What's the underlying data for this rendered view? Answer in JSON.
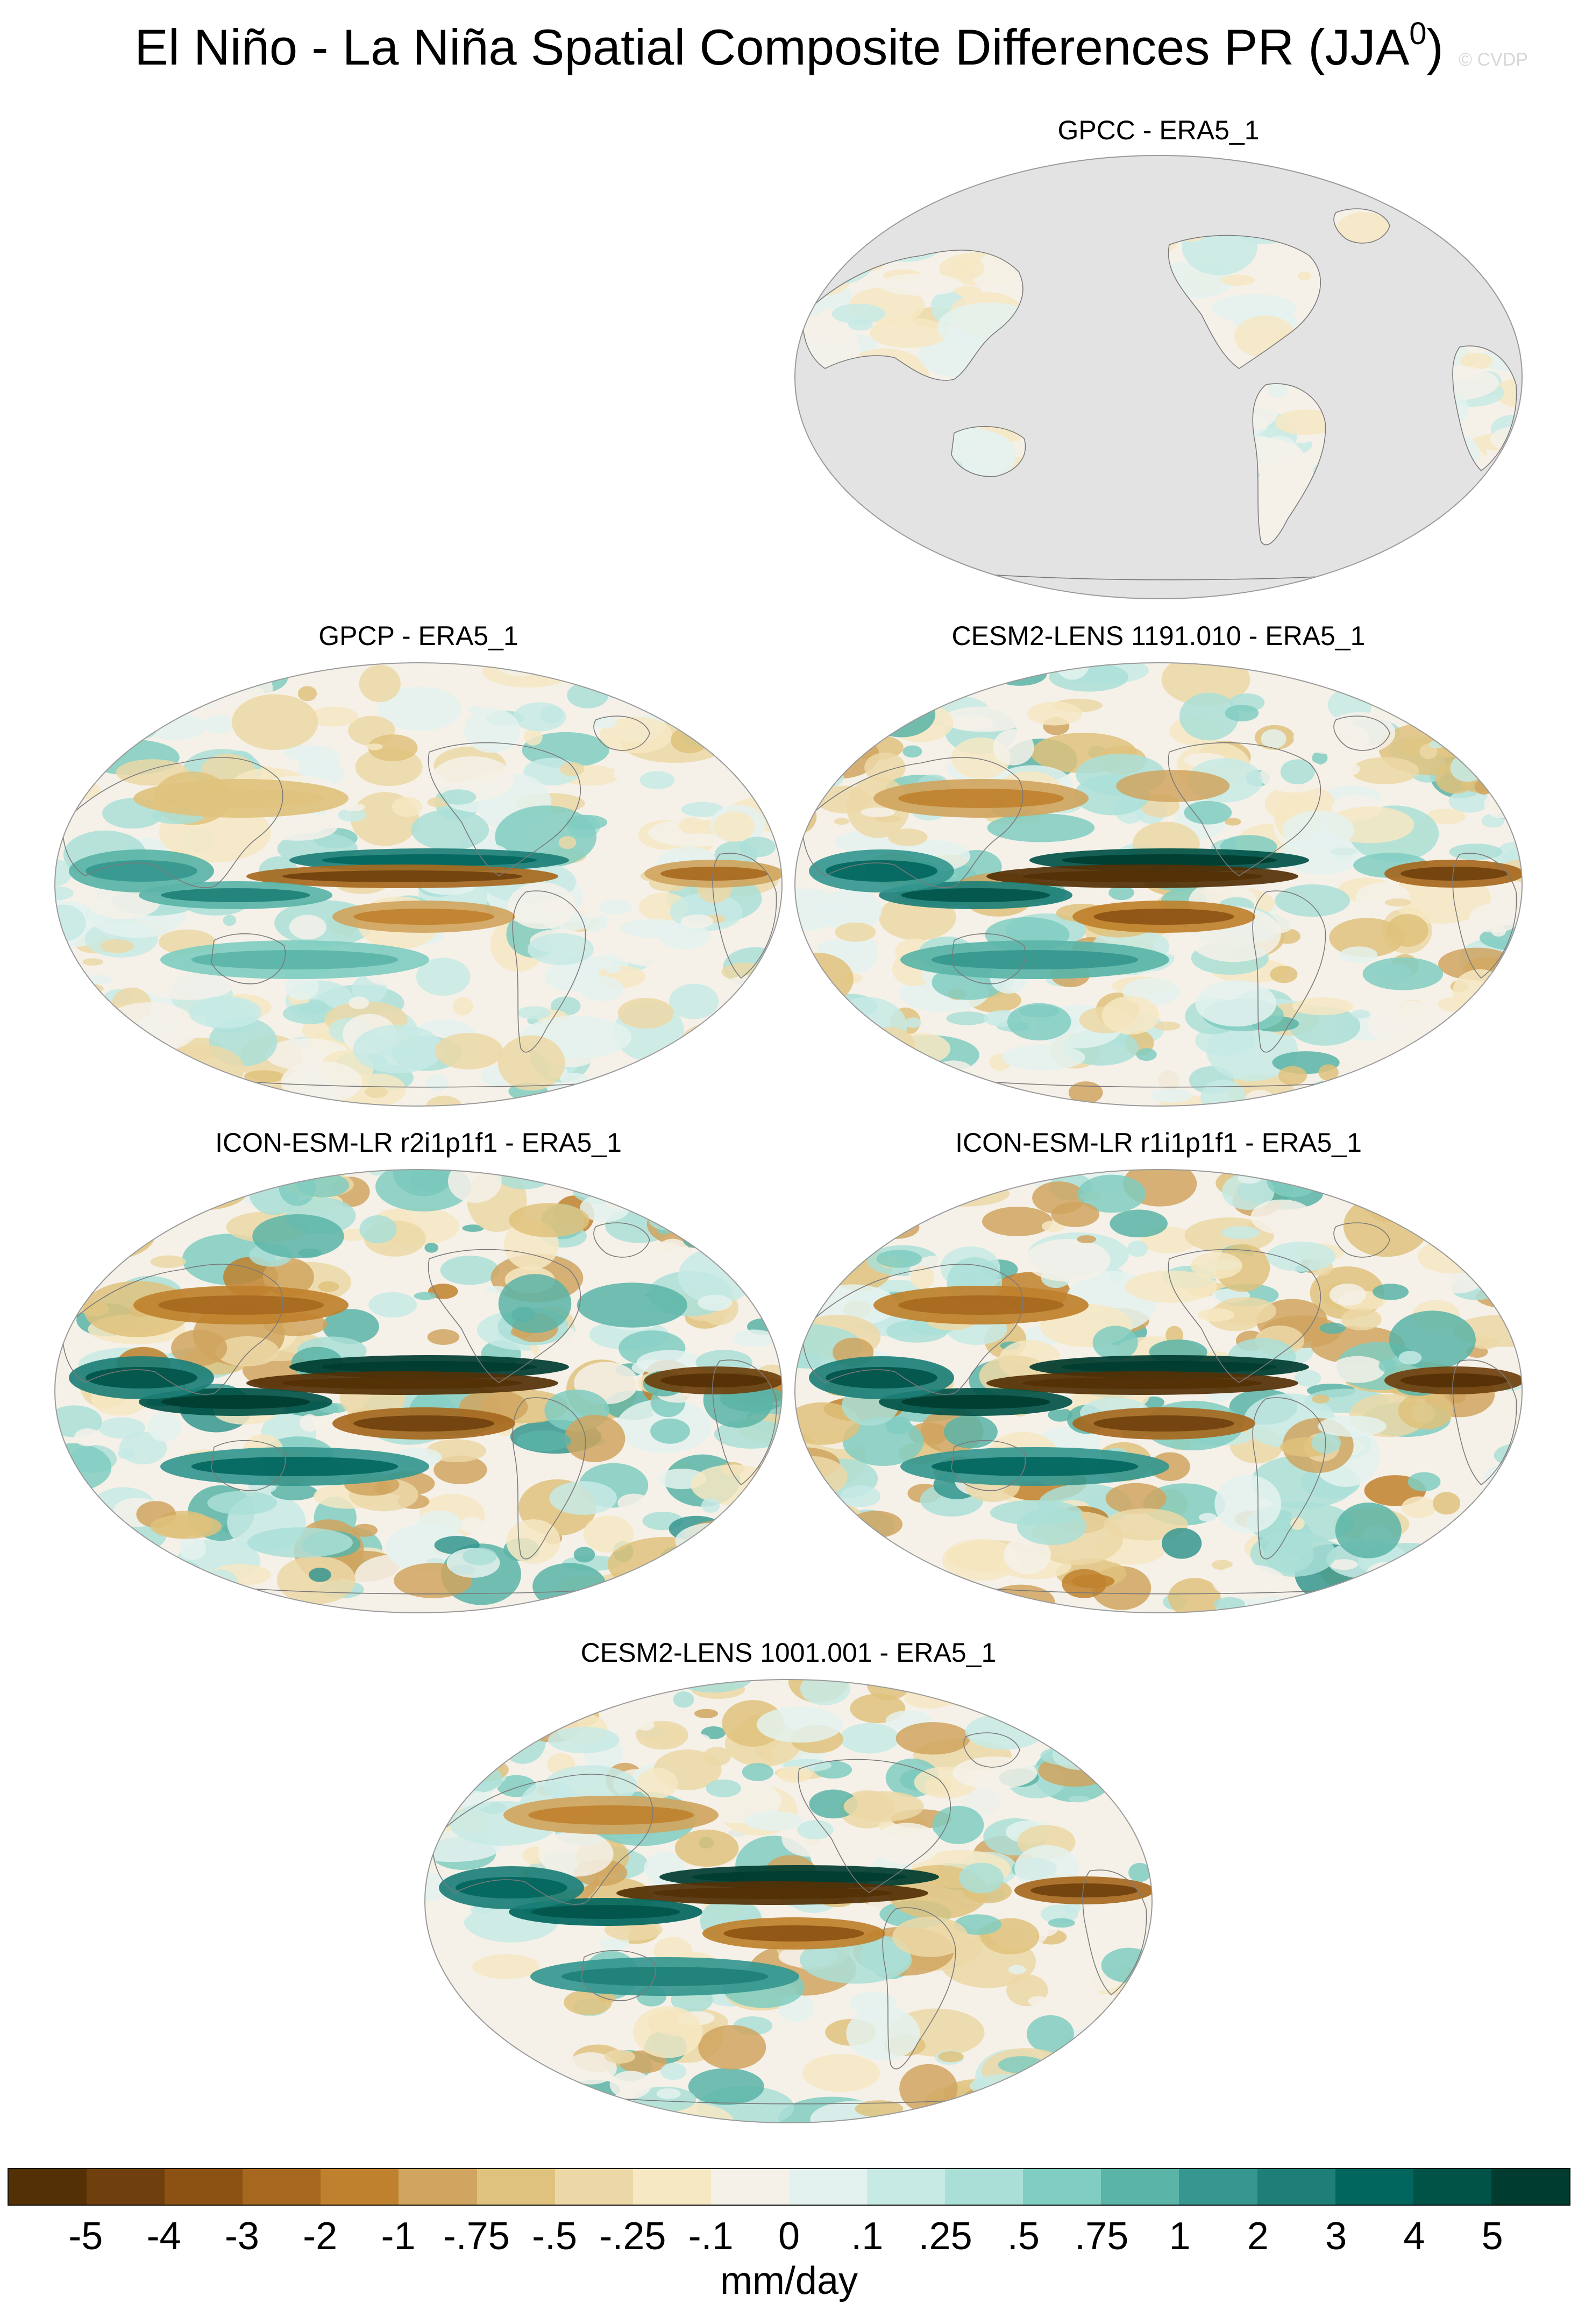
{
  "title": {
    "main": "El Niño - La Niña Spatial Composite Differences PR (JJA",
    "superscript": "0",
    "close": ")"
  },
  "watermark": "© CVDP",
  "panels": [
    {
      "title": "GPCC - ERA5_1",
      "land_only": true,
      "intensity": 0.45
    },
    {
      "title": "GPCP - ERA5_1",
      "land_only": false,
      "intensity": 0.7
    },
    {
      "title": "CESM2-LENS 1191.010 - ERA5_1",
      "land_only": false,
      "intensity": 0.95
    },
    {
      "title": "ICON-ESM-LR r2i1p1f1 - ERA5_1",
      "land_only": false,
      "intensity": 1.15
    },
    {
      "title": "ICON-ESM-LR r1i1p1f1 - ERA5_1",
      "land_only": false,
      "intensity": 1.15
    },
    {
      "title": "CESM2-LENS 1001.001 - ERA5_1",
      "land_only": false,
      "intensity": 1.0
    }
  ],
  "colorbar": {
    "colors": [
      "#543005",
      "#6f400d",
      "#8c5213",
      "#a6681e",
      "#bf812d",
      "#d0a55f",
      "#dfc27d",
      "#ecd8a7",
      "#f6e8c3",
      "#f5f1e9",
      "#e4f2ef",
      "#c7eae5",
      "#aadfd7",
      "#80cdc1",
      "#5ab4a7",
      "#35978f",
      "#1d7f77",
      "#01665e",
      "#015348",
      "#003c30"
    ],
    "tick_labels": [
      "-5",
      "-4",
      "-3",
      "-2",
      "-1",
      "-.75",
      "-.5",
      "-.25",
      "-.1",
      "0",
      ".1",
      ".25",
      ".5",
      ".75",
      "1",
      "2",
      "3",
      "4",
      "5"
    ],
    "units": "mm/day"
  }
}
